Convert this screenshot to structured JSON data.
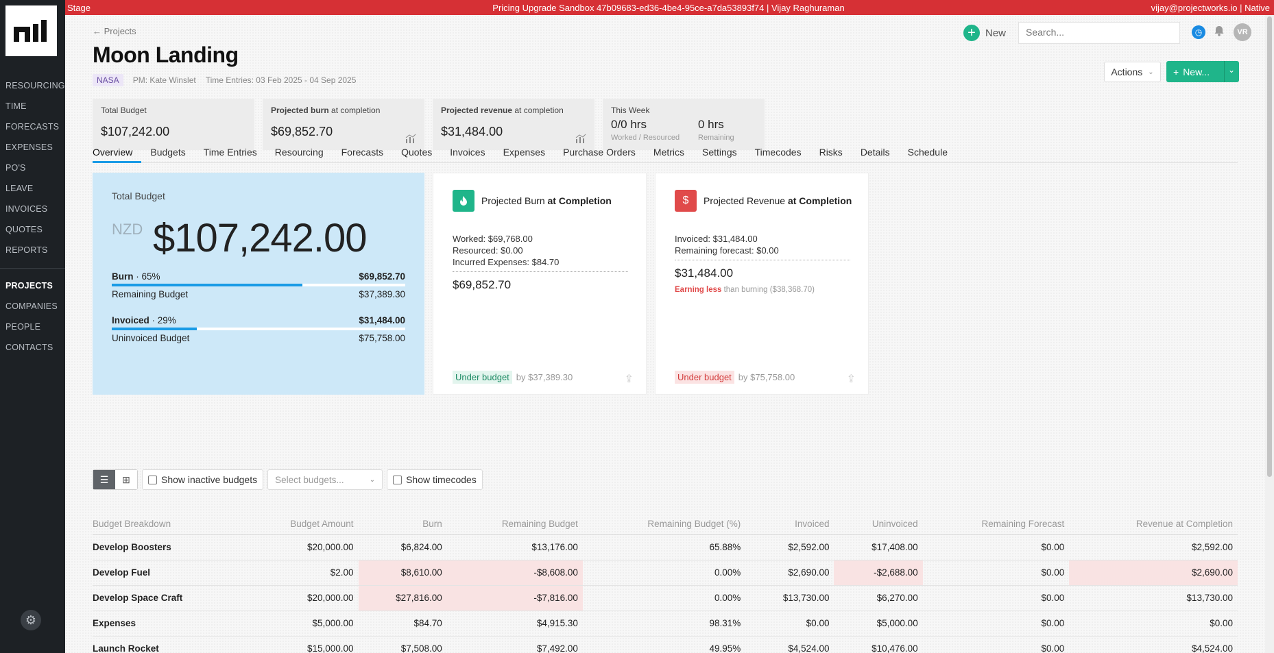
{
  "topbar": {
    "left": "Stage",
    "center": "Pricing Upgrade Sandbox 47b09683-ed36-4be4-95ce-a7da53893f74 | Vijay Raghuraman",
    "right": "vijay@projectworks.io | Native"
  },
  "sidebar": {
    "items_top": [
      "RESOURCING",
      "TIME",
      "FORECASTS",
      "EXPENSES",
      "PO'S",
      "LEAVE",
      "INVOICES",
      "QUOTES",
      "REPORTS"
    ],
    "items_bottom": [
      "PROJECTS",
      "COMPANIES",
      "PEOPLE",
      "CONTACTS"
    ]
  },
  "header": {
    "back_label": "← Projects",
    "title": "Moon Landing",
    "client_tag": "NASA",
    "pm": "PM: Kate Winslet",
    "time_entries": "Time Entries: 03 Feb 2025 - 04 Sep 2025",
    "new_label": "New",
    "search_placeholder": "Search...",
    "avatar_initials": "VR",
    "actions_label": "Actions",
    "new_button_label": "New..."
  },
  "stats": [
    {
      "label_bold": "",
      "label": "Total Budget",
      "value": "$107,242.00"
    },
    {
      "label_bold": "Projected burn",
      "label": " at completion",
      "value": "$69,852.70"
    },
    {
      "label_bold": "Projected revenue",
      "label": " at completion",
      "value": "$31,484.00"
    }
  ],
  "this_week": {
    "label": "This Week",
    "worked_value": "0/0 hrs",
    "worked_label": "Worked / Resourced",
    "remaining_value": "0 hrs",
    "remaining_label": "Remaining"
  },
  "tabs": [
    "Overview",
    "Budgets",
    "Time Entries",
    "Resourcing",
    "Forecasts",
    "Quotes",
    "Invoices",
    "Expenses",
    "Purchase Orders",
    "Metrics",
    "Settings",
    "Timecodes",
    "Risks",
    "Details",
    "Schedule"
  ],
  "total_budget_card": {
    "title": "Total Budget",
    "currency": "NZD",
    "amount": "$107,242.00",
    "burn_label": "Burn",
    "burn_pct": "· 65%",
    "burn_pct_value": 0.65,
    "burn_value": "$69,852.70",
    "remaining_label": "Remaining Budget",
    "remaining_value": "$37,389.30",
    "invoiced_label": "Invoiced",
    "invoiced_pct": "· 29%",
    "invoiced_pct_value": 0.29,
    "invoiced_value": "$31,484.00",
    "uninvoiced_label": "Uninvoiced Budget",
    "uninvoiced_value": "$75,758.00"
  },
  "burn_card": {
    "title": "Projected Burn",
    "title_bold": "at Completion",
    "line1": "Worked: $69,768.00",
    "line2": "Resourced: $0.00",
    "line3": "Incurred Expenses: $84.70",
    "total": "$69,852.70",
    "status": "Under budget",
    "status_by": "by $37,389.30",
    "color": "#1fb58a"
  },
  "revenue_card": {
    "title": "Projected Revenue",
    "title_bold": "at Completion",
    "line1": "Invoiced: $31,484.00",
    "line2": "Remaining forecast: $0.00",
    "total": "$31,484.00",
    "warn_bold": "Earning less",
    "warn_rest": "than burning ($38,368.70)",
    "status": "Under budget",
    "status_by": "by $75,758.00",
    "color": "#e04a4a"
  },
  "toolbar": {
    "show_inactive": "Show inactive budgets",
    "select_placeholder": "Select budgets...",
    "show_timecodes": "Show timecodes"
  },
  "table": {
    "headers": [
      "Budget Breakdown",
      "Budget Amount",
      "Burn",
      "Remaining Budget",
      "Remaining Budget (%)",
      "Invoiced",
      "Uninvoiced",
      "Remaining Forecast",
      "Revenue at Completion"
    ],
    "rows": [
      [
        "Develop Boosters",
        "$20,000.00",
        "$6,824.00",
        "$13,176.00",
        "65.88%",
        "$2,592.00",
        "$17,408.00",
        "$0.00",
        "$2,592.00"
      ],
      [
        "Develop Fuel",
        "$2.00",
        "$8,610.00",
        "-$8,608.00",
        "0.00%",
        "$2,690.00",
        "-$2,688.00",
        "$0.00",
        "$2,690.00"
      ],
      [
        "Develop Space Craft",
        "$20,000.00",
        "$27,816.00",
        "-$7,816.00",
        "0.00%",
        "$13,730.00",
        "$6,270.00",
        "$0.00",
        "$13,730.00"
      ],
      [
        "Expenses",
        "$5,000.00",
        "$84.70",
        "$4,915.30",
        "98.31%",
        "$0.00",
        "$5,000.00",
        "$0.00",
        "$0.00"
      ],
      [
        "Launch Rocket",
        "$15,000.00",
        "$7,508.00",
        "$7,492.00",
        "49.95%",
        "$4,524.00",
        "$10,476.00",
        "$0.00",
        "$4,524.00"
      ]
    ]
  }
}
